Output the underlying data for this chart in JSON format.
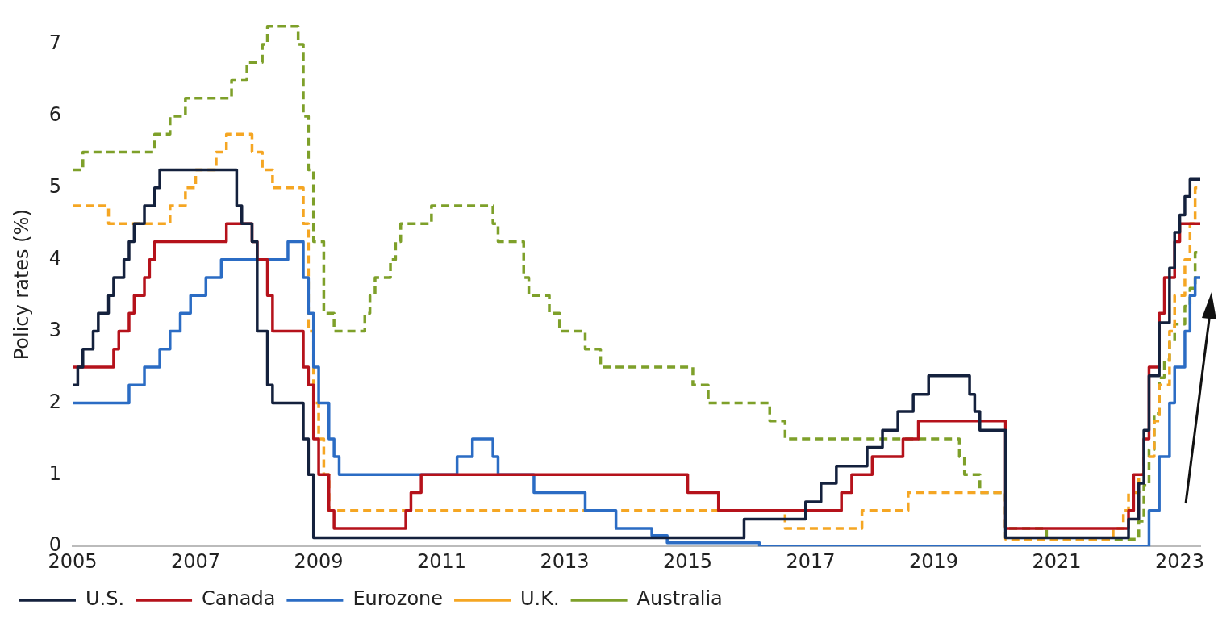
{
  "chart_data": {
    "type": "step",
    "ylabel": "Policy rates (%)",
    "xlim": [
      "2005-01",
      "2023-05"
    ],
    "xticks": [
      "2005",
      "2007",
      "2009",
      "2011",
      "2013",
      "2015",
      "2017",
      "2019",
      "2021",
      "2023"
    ],
    "ylim": [
      0,
      7.3
    ],
    "yticks": [
      0,
      1,
      2,
      3,
      4,
      5,
      6,
      7
    ],
    "grid": false,
    "legend": "bottom",
    "series": [
      {
        "name": "U.S.",
        "color": "#14213d",
        "line_style": "solid",
        "x": [
          "2005-01",
          "2005-02",
          "2005-03",
          "2005-05",
          "2005-06",
          "2005-08",
          "2005-09",
          "2005-11",
          "2005-12",
          "2006-01",
          "2006-03",
          "2006-05",
          "2006-06",
          "2007-09",
          "2007-10",
          "2007-12",
          "2008-01",
          "2008-03",
          "2008-04",
          "2008-10",
          "2008-11",
          "2008-12",
          "2015-12",
          "2016-12",
          "2017-03",
          "2017-06",
          "2017-12",
          "2018-03",
          "2018-06",
          "2018-09",
          "2018-12",
          "2019-08",
          "2019-09",
          "2019-10",
          "2020-03",
          "2022-03",
          "2022-05",
          "2022-06",
          "2022-07",
          "2022-09",
          "2022-11",
          "2022-12",
          "2023-01",
          "2023-02",
          "2023-03",
          "2023-05"
        ],
        "values": [
          2.25,
          2.5,
          2.75,
          3.0,
          3.25,
          3.5,
          3.75,
          4.0,
          4.25,
          4.5,
          4.75,
          5.0,
          5.25,
          4.75,
          4.5,
          4.25,
          3.0,
          2.25,
          2.0,
          1.5,
          1.0,
          0.12,
          0.38,
          0.62,
          0.88,
          1.12,
          1.38,
          1.62,
          1.88,
          2.12,
          2.38,
          2.12,
          1.88,
          1.62,
          0.12,
          0.38,
          0.88,
          1.62,
          2.38,
          3.12,
          3.88,
          4.38,
          4.62,
          4.88,
          5.12,
          5.12
        ]
      },
      {
        "name": "Canada",
        "color": "#b5121b",
        "line_style": "solid",
        "x": [
          "2005-01",
          "2005-09",
          "2005-10",
          "2005-12",
          "2006-01",
          "2006-03",
          "2006-04",
          "2006-05",
          "2007-07",
          "2007-12",
          "2008-01",
          "2008-03",
          "2008-04",
          "2008-10",
          "2008-11",
          "2008-12",
          "2009-01",
          "2009-03",
          "2009-04",
          "2010-06",
          "2010-07",
          "2010-09",
          "2015-01",
          "2015-07",
          "2017-07",
          "2017-09",
          "2018-01",
          "2018-07",
          "2018-10",
          "2020-03",
          "2022-03",
          "2022-04",
          "2022-06",
          "2022-07",
          "2022-09",
          "2022-10",
          "2022-12",
          "2023-01",
          "2023-05"
        ],
        "values": [
          2.5,
          2.75,
          3.0,
          3.25,
          3.5,
          3.75,
          4.0,
          4.25,
          4.5,
          4.25,
          4.0,
          3.5,
          3.0,
          2.5,
          2.25,
          1.5,
          1.0,
          0.5,
          0.25,
          0.5,
          0.75,
          1.0,
          0.75,
          0.5,
          0.75,
          1.0,
          1.25,
          1.5,
          1.75,
          0.25,
          0.5,
          1.0,
          1.5,
          2.5,
          3.25,
          3.75,
          4.25,
          4.5,
          4.5
        ]
      },
      {
        "name": "Eurozone",
        "color": "#2b6cc4",
        "line_style": "solid",
        "x": [
          "2005-01",
          "2005-12",
          "2006-03",
          "2006-06",
          "2006-08",
          "2006-10",
          "2006-12",
          "2007-03",
          "2007-06",
          "2008-07",
          "2008-10",
          "2008-11",
          "2008-12",
          "2009-01",
          "2009-03",
          "2009-04",
          "2009-05",
          "2011-04",
          "2011-07",
          "2011-11",
          "2011-12",
          "2012-07",
          "2013-05",
          "2013-11",
          "2014-06",
          "2014-09",
          "2016-03",
          "2022-07",
          "2022-09",
          "2022-11",
          "2022-12",
          "2023-02",
          "2023-03",
          "2023-04",
          "2023-05"
        ],
        "values": [
          2.0,
          2.25,
          2.5,
          2.75,
          3.0,
          3.25,
          3.5,
          3.75,
          4.0,
          4.25,
          3.75,
          3.25,
          2.5,
          2.0,
          1.5,
          1.25,
          1.0,
          1.25,
          1.5,
          1.25,
          1.0,
          0.75,
          0.5,
          0.25,
          0.15,
          0.05,
          0.0,
          0.5,
          1.25,
          2.0,
          2.5,
          3.0,
          3.5,
          3.75,
          3.75
        ]
      },
      {
        "name": "U.K.",
        "color": "#f5a623",
        "line_style": "dashed",
        "x": [
          "2005-01",
          "2005-08",
          "2006-08",
          "2006-11",
          "2007-01",
          "2007-05",
          "2007-07",
          "2007-12",
          "2008-02",
          "2008-04",
          "2008-10",
          "2008-11",
          "2008-12",
          "2009-01",
          "2009-02",
          "2009-03",
          "2016-08",
          "2017-11",
          "2018-08",
          "2020-03",
          "2021-12",
          "2022-02",
          "2022-03",
          "2022-05",
          "2022-06",
          "2022-08",
          "2022-09",
          "2022-11",
          "2022-12",
          "2023-02",
          "2023-03",
          "2023-04",
          "2023-05"
        ],
        "values": [
          4.75,
          4.5,
          4.75,
          5.0,
          5.25,
          5.5,
          5.75,
          5.5,
          5.25,
          5.0,
          4.5,
          3.0,
          2.0,
          1.5,
          1.0,
          0.5,
          0.25,
          0.5,
          0.75,
          0.1,
          0.25,
          0.5,
          0.75,
          1.0,
          1.25,
          1.75,
          2.25,
          3.0,
          3.5,
          4.0,
          4.5,
          5.0,
          5.0
        ]
      },
      {
        "name": "Australia",
        "color": "#7ea02a",
        "line_style": "dashed",
        "x": [
          "2005-01",
          "2005-03",
          "2006-05",
          "2006-08",
          "2006-11",
          "2007-08",
          "2007-11",
          "2008-02",
          "2008-03",
          "2008-09",
          "2008-10",
          "2008-11",
          "2008-12",
          "2009-02",
          "2009-04",
          "2009-10",
          "2009-11",
          "2009-12",
          "2010-03",
          "2010-04",
          "2010-05",
          "2010-11",
          "2011-11",
          "2011-12",
          "2012-05",
          "2012-06",
          "2012-10",
          "2012-12",
          "2013-05",
          "2013-08",
          "2015-02",
          "2015-05",
          "2016-05",
          "2016-08",
          "2019-06",
          "2019-07",
          "2019-10",
          "2020-03",
          "2020-11",
          "2022-05",
          "2022-06",
          "2022-07",
          "2022-08",
          "2022-09",
          "2022-10",
          "2022-11",
          "2022-12",
          "2023-02",
          "2023-03",
          "2023-04",
          "2023-05"
        ],
        "values": [
          5.25,
          5.5,
          5.75,
          6.0,
          6.25,
          6.5,
          6.75,
          7.0,
          7.25,
          7.0,
          6.0,
          5.25,
          4.25,
          3.25,
          3.0,
          3.25,
          3.5,
          3.75,
          4.0,
          4.25,
          4.5,
          4.75,
          4.5,
          4.25,
          3.75,
          3.5,
          3.25,
          3.0,
          2.75,
          2.5,
          2.25,
          2.0,
          1.75,
          1.5,
          1.25,
          1.0,
          0.75,
          0.25,
          0.1,
          0.35,
          0.85,
          1.35,
          1.85,
          2.35,
          2.6,
          2.85,
          3.1,
          3.35,
          3.6,
          4.1,
          4.1
        ]
      }
    ]
  }
}
